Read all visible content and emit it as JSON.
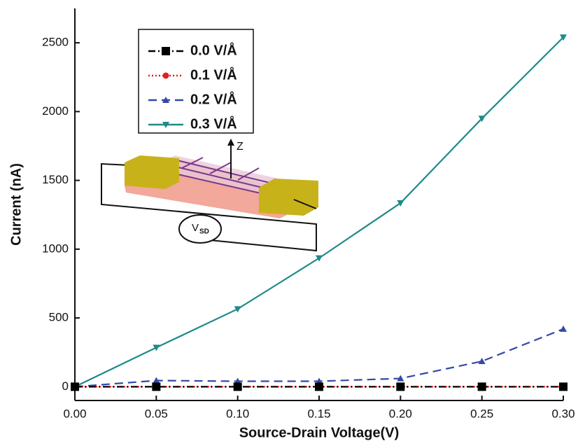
{
  "chart_data": {
    "type": "line",
    "x_label": "Source-Drain Voltage(V)",
    "y_label": "Current (nA)",
    "x": [
      0,
      0.05,
      0.1,
      0.15,
      0.2,
      0.25,
      0.3
    ],
    "series": [
      {
        "name": "0.0 V/Å",
        "color": "#000000",
        "dash": "10 4 2 4",
        "marker": "square",
        "values": [
          0,
          0,
          0,
          0,
          0,
          0,
          0
        ]
      },
      {
        "name": "0.1 V/Å",
        "color": "#e02020",
        "dash": "2 3",
        "marker": "circle",
        "values": [
          0,
          0,
          0,
          0,
          0,
          0,
          0
        ]
      },
      {
        "name": "0.2 V/Å",
        "color": "#3348a8",
        "dash": "12 7",
        "marker": "triangle",
        "values": [
          0,
          45,
          40,
          40,
          60,
          185,
          420
        ]
      },
      {
        "name": "0.3 V/Å",
        "color": "#1d8a88",
        "dash": "",
        "marker": "triangle-down",
        "values": [
          0,
          285,
          565,
          935,
          1335,
          1950,
          2540
        ]
      }
    ],
    "xlim": [
      0,
      0.3
    ],
    "ylim": [
      -100,
      2750
    ],
    "xticks": [
      {
        "value": 0,
        "label": "0.00"
      },
      {
        "value": 0.05,
        "label": "0.05"
      },
      {
        "value": 0.1,
        "label": "0.10"
      },
      {
        "value": 0.15,
        "label": "0.15"
      },
      {
        "value": 0.2,
        "label": "0.20"
      },
      {
        "value": 0.25,
        "label": "0.25"
      },
      {
        "value": 0.3,
        "label": "0.30"
      }
    ],
    "yticks": [
      0,
      500,
      1000,
      1500,
      2000,
      2500
    ],
    "legend": "upper left",
    "inset_labels": {
      "axis": "Z",
      "voltage": "V",
      "voltage_subscript": "SD"
    }
  }
}
